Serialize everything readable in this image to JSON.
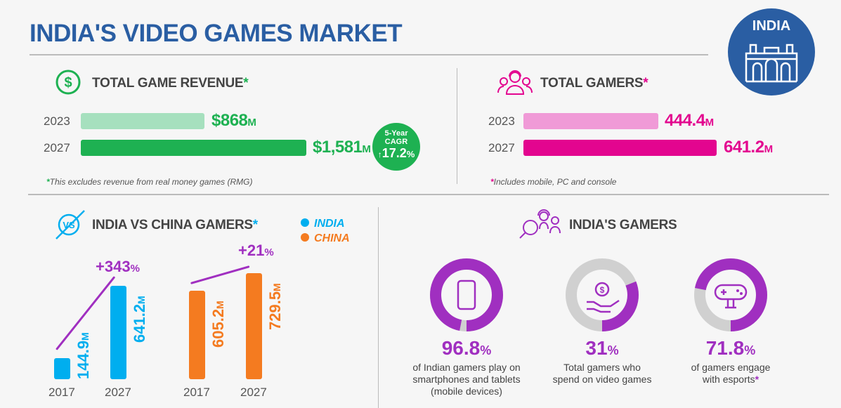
{
  "title": "INDIA'S VIDEO GAMES MARKET",
  "badge": "INDIA",
  "colors": {
    "blue": "#2a5ea3",
    "green": "#1eb152",
    "green_light": "#a6e0be",
    "pink": "#e3058f",
    "pink_light": "#f09ad7",
    "cyan": "#00aeef",
    "orange": "#f47b20",
    "purple": "#a02fc0",
    "gray": "#d0d0d0"
  },
  "revenue": {
    "heading": "TOTAL GAME REVENUE",
    "star": "*",
    "rows": [
      {
        "year": "2023",
        "value": "$868",
        "unit": "M",
        "amount": 868
      },
      {
        "year": "2027",
        "value": "$1,581",
        "unit": "M",
        "amount": 1581
      }
    ],
    "cagr_label1": "5-Year",
    "cagr_label2": "CAGR",
    "cagr_arrow": "↑",
    "cagr_value": "17.2",
    "cagr_pct": "%",
    "note_star": "*",
    "note": "This excludes revenue from real money games (RMG)"
  },
  "gamers": {
    "heading": "TOTAL GAMERS",
    "star": "*",
    "rows": [
      {
        "year": "2023",
        "value": "444.4",
        "unit": "M",
        "amount": 444.4
      },
      {
        "year": "2027",
        "value": "641.2",
        "unit": "M",
        "amount": 641.2
      }
    ],
    "note_star": "*",
    "note": "Includes mobile, PC and console"
  },
  "versus": {
    "heading": "INDIA VS CHINA GAMERS",
    "star": "*",
    "icon_text": "VS"
  },
  "india_gamers": {
    "heading": "INDIA'S GAMERS",
    "donuts": [
      {
        "value": "96.8",
        "pct": "%",
        "fraction": 0.968,
        "line1": "of Indian gamers play on",
        "line2": "smartphones and tablets",
        "line3": "(mobile devices)"
      },
      {
        "value": "31",
        "pct": "%",
        "fraction": 0.31,
        "line1": "Total gamers who",
        "line2": "spend on video games",
        "line3": ""
      },
      {
        "value": "71.8",
        "pct": "%",
        "fraction": 0.718,
        "line1": "of gamers engage",
        "line2": "with esports",
        "line3": "*"
      }
    ]
  },
  "chart_data": {
    "type": "bar",
    "title": "INDIA VS CHINA GAMERS",
    "legend": [
      "INDIA",
      "CHINA"
    ],
    "legend_placement": "top-right",
    "series": [
      {
        "name": "INDIA",
        "categories": [
          "2017",
          "2027"
        ],
        "values": [
          144.9,
          641.2
        ],
        "labels": [
          "144.9",
          "641.2"
        ],
        "growth": "+343",
        "growth_pct": "%"
      },
      {
        "name": "CHINA",
        "categories": [
          "2017",
          "2027"
        ],
        "values": [
          605.2,
          729.5
        ],
        "labels": [
          "605.2",
          "729.5"
        ],
        "growth": "+21",
        "growth_pct": "%"
      }
    ],
    "unit": "M"
  }
}
